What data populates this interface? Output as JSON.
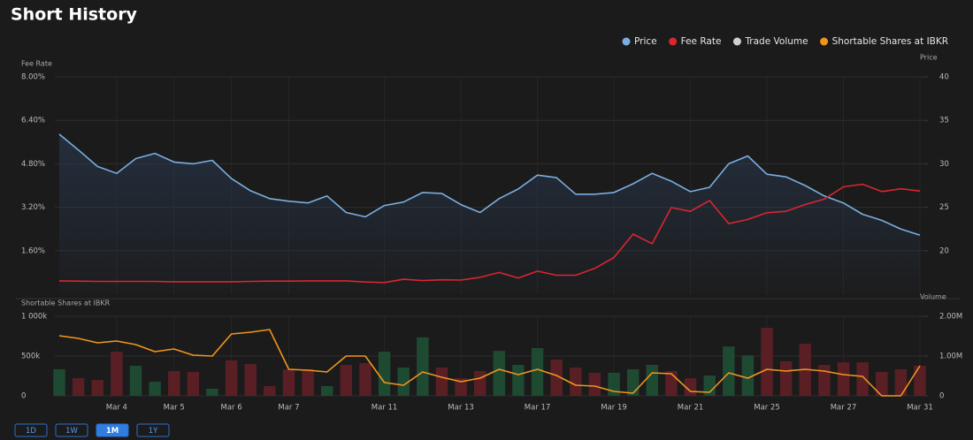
{
  "title": "Short History",
  "range_buttons": [
    "1D",
    "1W",
    "1M",
    "1Y"
  ],
  "active_range": "1M",
  "chart_data": [
    {
      "type": "line",
      "y_label": "Fee Rate",
      "y2_label": "Price",
      "ylim": [
        0,
        8
      ],
      "yticks": [
        {
          "value": 1.6,
          "label": "1.60%"
        },
        {
          "value": 3.2,
          "label": "3.20%"
        },
        {
          "value": 4.8,
          "label": "4.80%"
        },
        {
          "value": 6.4,
          "label": "6.40%"
        },
        {
          "value": 8,
          "label": "8.00%"
        }
      ],
      "y2lim": [
        15,
        40
      ],
      "y2ticks": [
        20,
        25,
        30,
        35,
        40
      ],
      "grid": true,
      "series": [
        {
          "name": "Price",
          "color": "#7aaee0",
          "axis": "y2",
          "area": true,
          "values": [
            33.4,
            31.6,
            29.7,
            28.9,
            30.6,
            31.2,
            30.2,
            30.0,
            30.4,
            28.3,
            26.9,
            26.0,
            25.7,
            25.5,
            26.3,
            24.4,
            23.9,
            25.2,
            25.6,
            26.7,
            26.6,
            25.3,
            24.4,
            26.0,
            27.1,
            28.7,
            28.4,
            26.5,
            26.5,
            26.7,
            27.7,
            28.9,
            28.0,
            26.8,
            27.3,
            30.0,
            30.9,
            28.8,
            28.5,
            27.5,
            26.3,
            25.5,
            24.2,
            23.5,
            22.5,
            21.8
          ]
        },
        {
          "name": "Fee Rate",
          "color": "#d9262f",
          "values": [
            0.49,
            0.48,
            0.47,
            0.47,
            0.47,
            0.47,
            0.46,
            0.46,
            0.46,
            0.46,
            0.47,
            0.48,
            0.48,
            0.49,
            0.49,
            0.49,
            0.45,
            0.43,
            0.55,
            0.5,
            0.53,
            0.52,
            0.62,
            0.8,
            0.6,
            0.85,
            0.7,
            0.7,
            0.95,
            1.35,
            2.21,
            1.86,
            3.19,
            3.05,
            3.45,
            2.6,
            2.75,
            3.0,
            3.05,
            3.3,
            3.5,
            3.95,
            4.05,
            3.78,
            3.88,
            3.8
          ]
        }
      ]
    },
    {
      "type": "bar",
      "y_label": "Shortable Shares at IBKR",
      "y2_label": "Volume",
      "categories": [
        null,
        null,
        null,
        "Mar 4",
        null,
        null,
        "Mar 5",
        null,
        null,
        "Mar 6",
        null,
        null,
        "Mar 7",
        null,
        null,
        null,
        null,
        "Mar 11",
        null,
        null,
        null,
        "Mar 13",
        null,
        null,
        null,
        "Mar 17",
        null,
        null,
        null,
        "Mar 19",
        null,
        null,
        null,
        "Mar 21",
        null,
        null,
        null,
        "Mar 25",
        null,
        null,
        null,
        "Mar 27",
        null,
        null,
        null,
        "Mar 31"
      ],
      "ylim": [
        0,
        1000000
      ],
      "yticks": [
        0,
        {
          "value": 500000,
          "label": "500k"
        },
        {
          "value": 1000000,
          "label": "1 000k"
        }
      ],
      "y2lim": [
        0,
        2000000
      ],
      "y2ticks": [
        0,
        {
          "value": 1000000,
          "label": "1.00M"
        },
        {
          "value": 2000000,
          "label": "2.00M"
        }
      ],
      "grid": true,
      "series": [
        {
          "name": "Trade Volume",
          "color": "#d0d0d0",
          "axis": "y2",
          "mark": "bar",
          "colors": [
            "#1e4a32",
            "#5a1f25",
            "#5a1f25",
            "#5a1f25",
            "#1e4a32",
            "#1e4a32",
            "#5a1f25",
            "#5a1f25",
            "#1e4a32",
            "#5a1f25",
            "#5a1f25",
            "#5a1f25",
            "#5a1f25",
            "#5a1f25",
            "#1e4a32",
            "#5a1f25",
            "#5a1f25",
            "#1e4a32",
            "#1e4a32",
            "#1e4a32",
            "#5a1f25",
            "#5a1f25",
            "#5a1f25",
            "#1e4a32",
            "#1e4a32",
            "#1e4a32",
            "#5a1f25",
            "#5a1f25",
            "#5a1f25",
            "#1e4a32",
            "#1e4a32",
            "#1e4a32",
            "#5a1f25",
            "#5a1f25",
            "#1e4a32",
            "#1e4a32",
            "#1e4a32",
            "#5a1f25",
            "#5a1f25",
            "#5a1f25",
            "#5a1f25",
            "#5a1f25",
            "#5a1f25",
            "#5a1f25",
            "#5a1f25",
            "#5a1f25"
          ],
          "values": [
            667000,
            444000,
            400000,
            1110000,
            756000,
            356000,
            622000,
            600000,
            178000,
            889000,
            800000,
            244000,
            667000,
            667000,
            244000,
            778000,
            822000,
            1110000,
            711000,
            1470000,
            711000,
            444000,
            622000,
            1130000,
            778000,
            1200000,
            911000,
            711000,
            578000,
            578000,
            667000,
            778000,
            622000,
            444000,
            511000,
            1240000,
            1020000,
            1710000,
            867000,
            1310000,
            778000,
            844000,
            844000,
            600000,
            667000,
            756000
          ]
        },
        {
          "name": "Shortable Shares at IBKR",
          "color": "#f0951e",
          "mark": "line",
          "values": [
            756000,
            722000,
            667000,
            689000,
            644000,
            556000,
            589000,
            511000,
            500000,
            778000,
            800000,
            833000,
            333000,
            322000,
            300000,
            500000,
            500000,
            167000,
            133000,
            300000,
            233000,
            178000,
            222000,
            333000,
            267000,
            333000,
            256000,
            133000,
            122000,
            56000,
            33000,
            289000,
            278000,
            56000,
            44000,
            289000,
            222000,
            333000,
            311000,
            333000,
            311000,
            267000,
            244000,
            0,
            0,
            378000
          ]
        }
      ]
    }
  ]
}
